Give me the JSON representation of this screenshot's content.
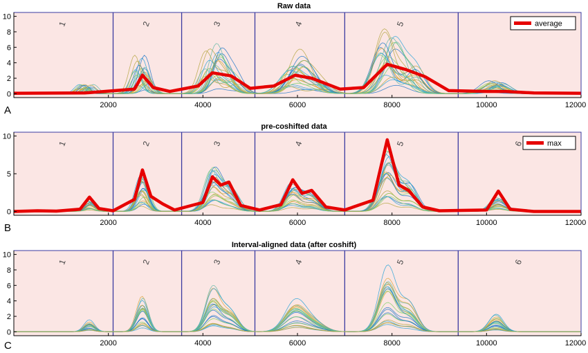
{
  "figure": {
    "background": "#ffffff",
    "axis_color": "#000000"
  },
  "colors": {
    "interval_fill": "#fbe6e4",
    "boundary": "#3a3aa0",
    "highlight": "#e60000",
    "sample_palette": [
      "#1f77c9",
      "#2aa3d8",
      "#7fd16a",
      "#b5a642",
      "#d9a53a",
      "#5fb7a6"
    ]
  },
  "chart_data": [
    {
      "panel": "A",
      "type": "line",
      "title": "Raw data",
      "xlabel": "",
      "ylabel": "",
      "xlim": [
        0,
        12000
      ],
      "ylim": [
        -0.5,
        10.5
      ],
      "xticks": [
        2000,
        4000,
        6000,
        8000,
        10000,
        12000
      ],
      "yticks": [
        0,
        2,
        4,
        6,
        8,
        10
      ],
      "grid": false,
      "intervals": [
        {
          "label": "1",
          "start": 0,
          "end": 2100
        },
        {
          "label": "2",
          "start": 2100,
          "end": 3550
        },
        {
          "label": "3",
          "start": 3550,
          "end": 5100
        },
        {
          "label": "4",
          "start": 5100,
          "end": 7000
        },
        {
          "label": "5",
          "start": 7000,
          "end": 9400
        },
        {
          "label": "",
          "start": 9400,
          "end": 12000
        }
      ],
      "peaks": [
        {
          "x": 1520,
          "h": 1.6,
          "w": 110
        },
        {
          "x": 2720,
          "h": 5.5,
          "w": 120
        },
        {
          "x": 4200,
          "h": 6.2,
          "w": 150
        },
        {
          "x": 4550,
          "h": 3.5,
          "w": 180
        },
        {
          "x": 5950,
          "h": 4.6,
          "w": 210
        },
        {
          "x": 6350,
          "h": 2.3,
          "w": 220
        },
        {
          "x": 7900,
          "h": 9.3,
          "w": 200
        },
        {
          "x": 8350,
          "h": 4.3,
          "w": 200
        },
        {
          "x": 10200,
          "h": 2.0,
          "w": 200
        }
      ],
      "scatter_shift": 170,
      "legend": {
        "label": "average",
        "position": "top-right"
      },
      "highlight_series": {
        "name": "average",
        "points": [
          [
            0,
            0.05
          ],
          [
            1500,
            0.1
          ],
          [
            2550,
            0.6
          ],
          [
            2720,
            2.4
          ],
          [
            2950,
            0.8
          ],
          [
            3300,
            0.3
          ],
          [
            3900,
            1.0
          ],
          [
            4200,
            2.7
          ],
          [
            4600,
            2.3
          ],
          [
            5000,
            0.7
          ],
          [
            5500,
            1.0
          ],
          [
            5950,
            2.4
          ],
          [
            6300,
            2.0
          ],
          [
            6900,
            0.6
          ],
          [
            7400,
            0.8
          ],
          [
            7900,
            3.8
          ],
          [
            8300,
            3.1
          ],
          [
            8700,
            2.2
          ],
          [
            9200,
            0.4
          ],
          [
            10000,
            0.3
          ],
          [
            10400,
            0.3
          ],
          [
            11000,
            0.1
          ],
          [
            12000,
            0.05
          ]
        ]
      }
    },
    {
      "panel": "B",
      "type": "line",
      "title": "pre-coshifted data",
      "xlabel": "",
      "ylabel": "",
      "xlim": [
        0,
        12000
      ],
      "ylim": [
        -0.5,
        10.5
      ],
      "xticks": [
        2000,
        4000,
        6000,
        8000,
        10000,
        12000
      ],
      "yticks": [
        0,
        5,
        10
      ],
      "grid": false,
      "intervals": [
        {
          "label": "1",
          "start": 0,
          "end": 2100
        },
        {
          "label": "2",
          "start": 2100,
          "end": 3550
        },
        {
          "label": "3",
          "start": 3550,
          "end": 5100
        },
        {
          "label": "4",
          "start": 5100,
          "end": 7000
        },
        {
          "label": "5",
          "start": 7000,
          "end": 9400
        },
        {
          "label": "6",
          "start": 9400,
          "end": 12000
        }
      ],
      "peaks": [
        {
          "x": 1600,
          "h": 1.6,
          "w": 110
        },
        {
          "x": 2720,
          "h": 5.5,
          "w": 120
        },
        {
          "x": 4200,
          "h": 6.2,
          "w": 150
        },
        {
          "x": 4550,
          "h": 3.5,
          "w": 180
        },
        {
          "x": 5900,
          "h": 4.3,
          "w": 160
        },
        {
          "x": 6300,
          "h": 2.6,
          "w": 170
        },
        {
          "x": 7900,
          "h": 9.3,
          "w": 170
        },
        {
          "x": 8350,
          "h": 4.3,
          "w": 180
        },
        {
          "x": 10250,
          "h": 2.0,
          "w": 160
        }
      ],
      "scatter_shift": 40,
      "legend": {
        "label": "max",
        "position": "top-right"
      },
      "highlight_series": {
        "name": "max",
        "points": [
          [
            0,
            0
          ],
          [
            500,
            0.1
          ],
          [
            900,
            0.05
          ],
          [
            1400,
            0.3
          ],
          [
            1600,
            1.9
          ],
          [
            1800,
            0.4
          ],
          [
            2100,
            0.1
          ],
          [
            2550,
            1.6
          ],
          [
            2720,
            5.5
          ],
          [
            2900,
            2.0
          ],
          [
            3150,
            1.0
          ],
          [
            3400,
            0.2
          ],
          [
            4000,
            1.2
          ],
          [
            4200,
            4.6
          ],
          [
            4380,
            3.5
          ],
          [
            4550,
            3.9
          ],
          [
            4800,
            0.8
          ],
          [
            5200,
            0.2
          ],
          [
            5650,
            0.9
          ],
          [
            5900,
            4.2
          ],
          [
            6100,
            2.4
          ],
          [
            6300,
            2.8
          ],
          [
            6600,
            0.6
          ],
          [
            7000,
            0.2
          ],
          [
            7600,
            1.5
          ],
          [
            7900,
            9.5
          ],
          [
            8150,
            3.5
          ],
          [
            8350,
            2.8
          ],
          [
            8650,
            0.6
          ],
          [
            9000,
            0.1
          ],
          [
            10000,
            0.2
          ],
          [
            10250,
            2.7
          ],
          [
            10500,
            0.3
          ],
          [
            11000,
            0
          ],
          [
            12000,
            0
          ]
        ]
      }
    },
    {
      "panel": "C",
      "type": "line",
      "title": "Interval-aligned data (after coshift)",
      "xlabel": "",
      "ylabel": "",
      "xlim": [
        0,
        12000
      ],
      "ylim": [
        -0.5,
        10.5
      ],
      "xticks": [
        2000,
        4000,
        6000,
        8000,
        10000,
        12000
      ],
      "yticks": [
        0,
        2,
        4,
        6,
        8,
        10
      ],
      "grid": false,
      "intervals": [
        {
          "label": "1",
          "start": 0,
          "end": 2100
        },
        {
          "label": "2",
          "start": 2100,
          "end": 3550
        },
        {
          "label": "3",
          "start": 3550,
          "end": 5100
        },
        {
          "label": "4",
          "start": 5100,
          "end": 7000
        },
        {
          "label": "5",
          "start": 7000,
          "end": 9400
        },
        {
          "label": "6",
          "start": 9400,
          "end": 12000
        }
      ],
      "peaks": [
        {
          "x": 1600,
          "h": 1.6,
          "w": 110
        },
        {
          "x": 2720,
          "h": 5.5,
          "w": 120
        },
        {
          "x": 4200,
          "h": 6.2,
          "w": 150
        },
        {
          "x": 4550,
          "h": 3.5,
          "w": 180
        },
        {
          "x": 5950,
          "h": 4.5,
          "w": 220
        },
        {
          "x": 6350,
          "h": 1.5,
          "w": 220
        },
        {
          "x": 7900,
          "h": 9.3,
          "w": 180
        },
        {
          "x": 8350,
          "h": 4.3,
          "w": 180
        },
        {
          "x": 10200,
          "h": 2.5,
          "w": 150
        }
      ],
      "scatter_shift": 10,
      "legend": null,
      "highlight_series": null
    }
  ],
  "panel_letters": [
    "A",
    "B",
    "C"
  ]
}
